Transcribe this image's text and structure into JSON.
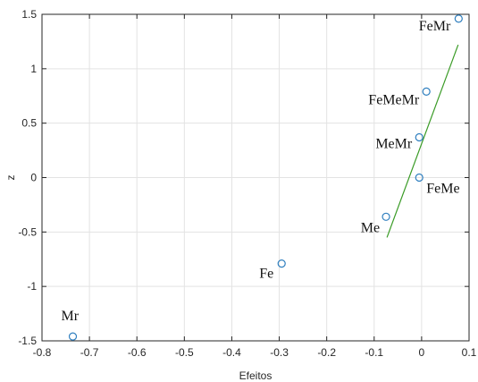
{
  "chart_data": {
    "type": "scatter",
    "title": "",
    "xlabel": "Efeitos",
    "ylabel": "z",
    "xlim": [
      -0.8,
      0.1
    ],
    "ylim": [
      -1.5,
      1.5
    ],
    "x_ticks": [
      -0.8,
      -0.7,
      -0.6,
      -0.5,
      -0.4,
      -0.3,
      -0.2,
      -0.1,
      0,
      0.1
    ],
    "y_ticks": [
      -1.5,
      -1,
      -0.5,
      0,
      0.5,
      1,
      1.5
    ],
    "x_tick_labels": [
      "-0.8",
      "-0.7",
      "-0.6",
      "-0.5",
      "-0.4",
      "-0.3",
      "-0.2",
      "-0.1",
      "0",
      "0.1"
    ],
    "y_tick_labels": [
      "-1.5",
      "-1",
      "-0.5",
      "0",
      "0.5",
      "1",
      "1.5"
    ],
    "grid": true,
    "points": [
      {
        "label": "Mr",
        "x": -0.735,
        "y": -1.46
      },
      {
        "label": "Fe",
        "x": -0.295,
        "y": -0.79
      },
      {
        "label": "Me",
        "x": -0.075,
        "y": -0.36
      },
      {
        "label": "FeMe",
        "x": -0.005,
        "y": 0.0
      },
      {
        "label": "MeMr",
        "x": -0.005,
        "y": 0.37
      },
      {
        "label": "FeMeMr",
        "x": 0.01,
        "y": 0.79
      },
      {
        "label": "FeMr",
        "x": 0.078,
        "y": 1.46
      }
    ],
    "fit_line": {
      "x": [
        -0.073,
        0.077
      ],
      "y": [
        -0.55,
        1.22
      ]
    },
    "colors": {
      "marker": "#2f7fbf",
      "fit_line": "#3a9b26",
      "grid": "#e3e3e3",
      "axes": "#262626"
    }
  }
}
